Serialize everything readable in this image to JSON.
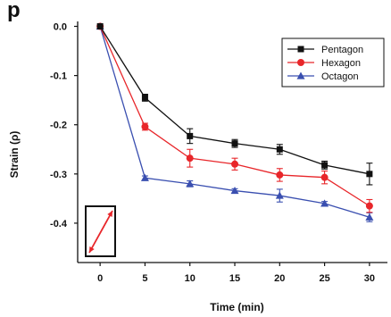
{
  "panel_label": "p",
  "chart_data": {
    "type": "line",
    "xlabel": "Time (min)",
    "ylabel": "Strain (ρ)",
    "x": [
      0,
      5,
      10,
      15,
      20,
      25,
      30
    ],
    "xticks": [
      "0",
      "5",
      "10",
      "15",
      "20",
      "25",
      "30"
    ],
    "yticks": [
      "0.0",
      "-0.1",
      "-0.2",
      "-0.3",
      "-0.4"
    ],
    "xlim": [
      -2.5,
      32
    ],
    "ylim": [
      -0.48,
      0.01
    ],
    "legend_position": "top-right",
    "inset": "rectangle with double-headed diagonal arrow",
    "series": [
      {
        "name": "Pentagon",
        "color": "#111111",
        "marker": "square",
        "values": [
          0.0,
          -0.145,
          -0.223,
          -0.238,
          -0.25,
          -0.282,
          -0.3
        ],
        "errors": [
          0.0,
          0.007,
          0.015,
          0.008,
          0.01,
          0.008,
          0.022
        ]
      },
      {
        "name": "Hexagon",
        "color": "#e8262a",
        "marker": "circle",
        "values": [
          0.0,
          -0.204,
          -0.268,
          -0.28,
          -0.302,
          -0.307,
          -0.365
        ],
        "errors": [
          0.0,
          0.007,
          0.018,
          0.012,
          0.013,
          0.013,
          0.013
        ]
      },
      {
        "name": "Octagon",
        "color": "#3a4fb0",
        "marker": "triangle",
        "values": [
          0.0,
          -0.308,
          -0.32,
          -0.334,
          -0.344,
          -0.36,
          -0.388
        ],
        "errors": [
          0.0,
          0.004,
          0.006,
          0.004,
          0.013,
          0.004,
          0.009
        ]
      }
    ]
  }
}
